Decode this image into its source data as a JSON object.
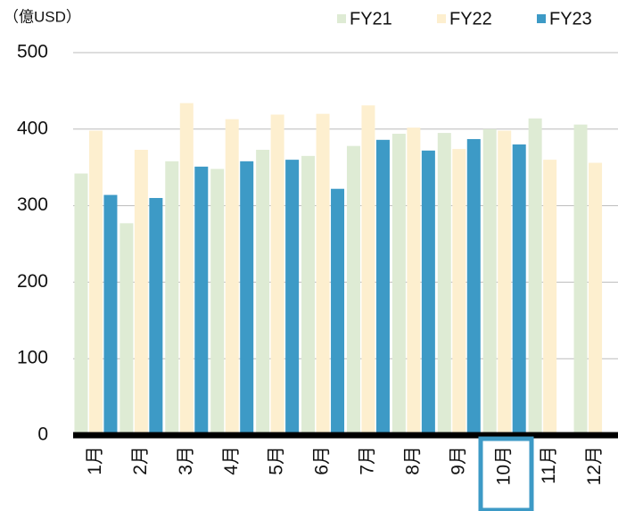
{
  "chart_data": {
    "type": "bar",
    "title": "（億USD）",
    "categories": [
      "1月",
      "2月",
      "3月",
      "4月",
      "5月",
      "6月",
      "7月",
      "8月",
      "9月",
      "10月",
      "11月",
      "12月"
    ],
    "series": [
      {
        "name": "FY21",
        "color": "#deebd4",
        "values": [
          342,
          277,
          358,
          348,
          373,
          365,
          378,
          394,
          395,
          400,
          414,
          406
        ]
      },
      {
        "name": "FY22",
        "color": "#fdefcf",
        "values": [
          398,
          373,
          434,
          413,
          419,
          420,
          431,
          402,
          374,
          398,
          360,
          356
        ]
      },
      {
        "name": "FY23",
        "color": "#3d9ac6",
        "values": [
          314,
          310,
          351,
          358,
          360,
          322,
          386,
          372,
          387,
          380,
          null,
          null
        ]
      }
    ],
    "ylim": [
      0,
      500
    ],
    "yticks": [
      0,
      100,
      200,
      300,
      400,
      500
    ],
    "grid": true,
    "legend": "top-right"
  }
}
